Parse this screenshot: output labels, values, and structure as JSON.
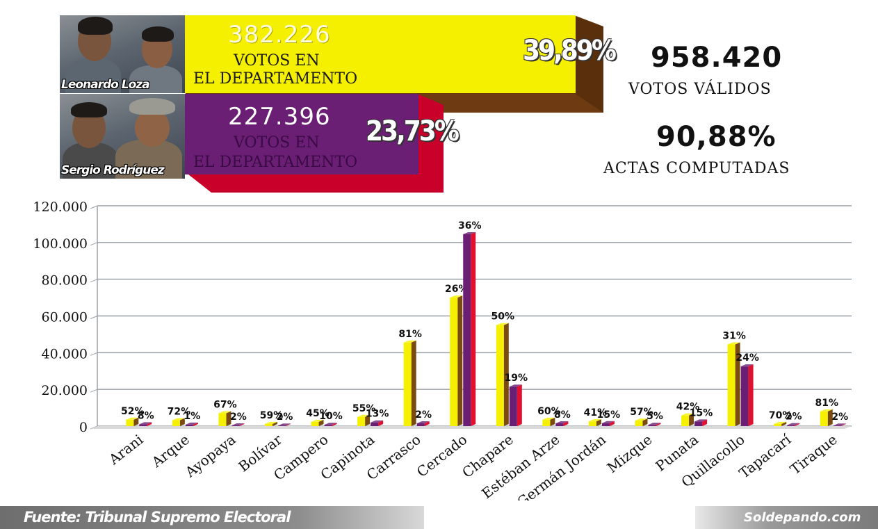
{
  "header": {
    "candidates": [
      {
        "name": "Leonardo Loza",
        "votes": "382.226",
        "votes_label_1": "VOTOS EN",
        "votes_label_2": "EL DEPARTAMENTO",
        "percent": "39,89%",
        "color": "#f5f000"
      },
      {
        "name": "Sergio Rodríguez",
        "votes": "227.396",
        "votes_label_1": "VOTOS EN",
        "votes_label_2": "EL DEPARTAMENTO",
        "percent": "23,73%",
        "color": "#6a1f74"
      }
    ],
    "valid_votes": "958.420",
    "valid_votes_label": "VOTOS VÁLIDOS",
    "actas_percent": "90,88%",
    "actas_label": "ACTAS COMPUTADAS"
  },
  "chart_data": {
    "type": "bar",
    "categories": [
      "Arani",
      "Arque",
      "Ayopaya",
      "Bolívar",
      "Campero",
      "Capinota",
      "Carrasco",
      "Cercado",
      "Chapare",
      "Estéban Arze",
      "Germán Jordán",
      "Mizque",
      "Punata",
      "Quillacollo",
      "Tapacarí",
      "Tiraque"
    ],
    "series": [
      {
        "color": "#f5f000",
        "values": [
          3500,
          3200,
          7000,
          1200,
          2300,
          5000,
          45500,
          70000,
          55000,
          3500,
          2600,
          3000,
          5800,
          44500,
          1200,
          8000
        ],
        "labels": [
          "52%",
          "72%",
          "67%",
          "59%",
          "45%",
          "55%",
          "81%",
          "26%",
          "50%",
          "60%",
          "41%",
          "57%",
          "42%",
          "31%",
          "70%",
          "81%"
        ]
      },
      {
        "color": "#6a1f74",
        "values": [
          1000,
          800,
          400,
          300,
          700,
          2000,
          1500,
          104500,
          21500,
          1500,
          1600,
          700,
          2500,
          32500,
          500,
          300
        ],
        "labels": [
          "8%",
          "1%",
          "2%",
          "2%",
          "10%",
          "13%",
          "2%",
          "36%",
          "19%",
          "8%",
          "15%",
          "5%",
          "15%",
          "24%",
          "2%",
          "2%"
        ]
      }
    ],
    "ylim": [
      0,
      120000
    ],
    "yticks": [
      0,
      20000,
      40000,
      60000,
      80000,
      100000,
      120000
    ],
    "ytick_labels": [
      "0",
      "20.000",
      "40.000",
      "60.000",
      "80.000",
      "100.000",
      "120.000"
    ],
    "grid": true
  },
  "footer": {
    "source": "Fuente: Tribunal Supremo Electoral",
    "site": "Soldepando.com"
  }
}
